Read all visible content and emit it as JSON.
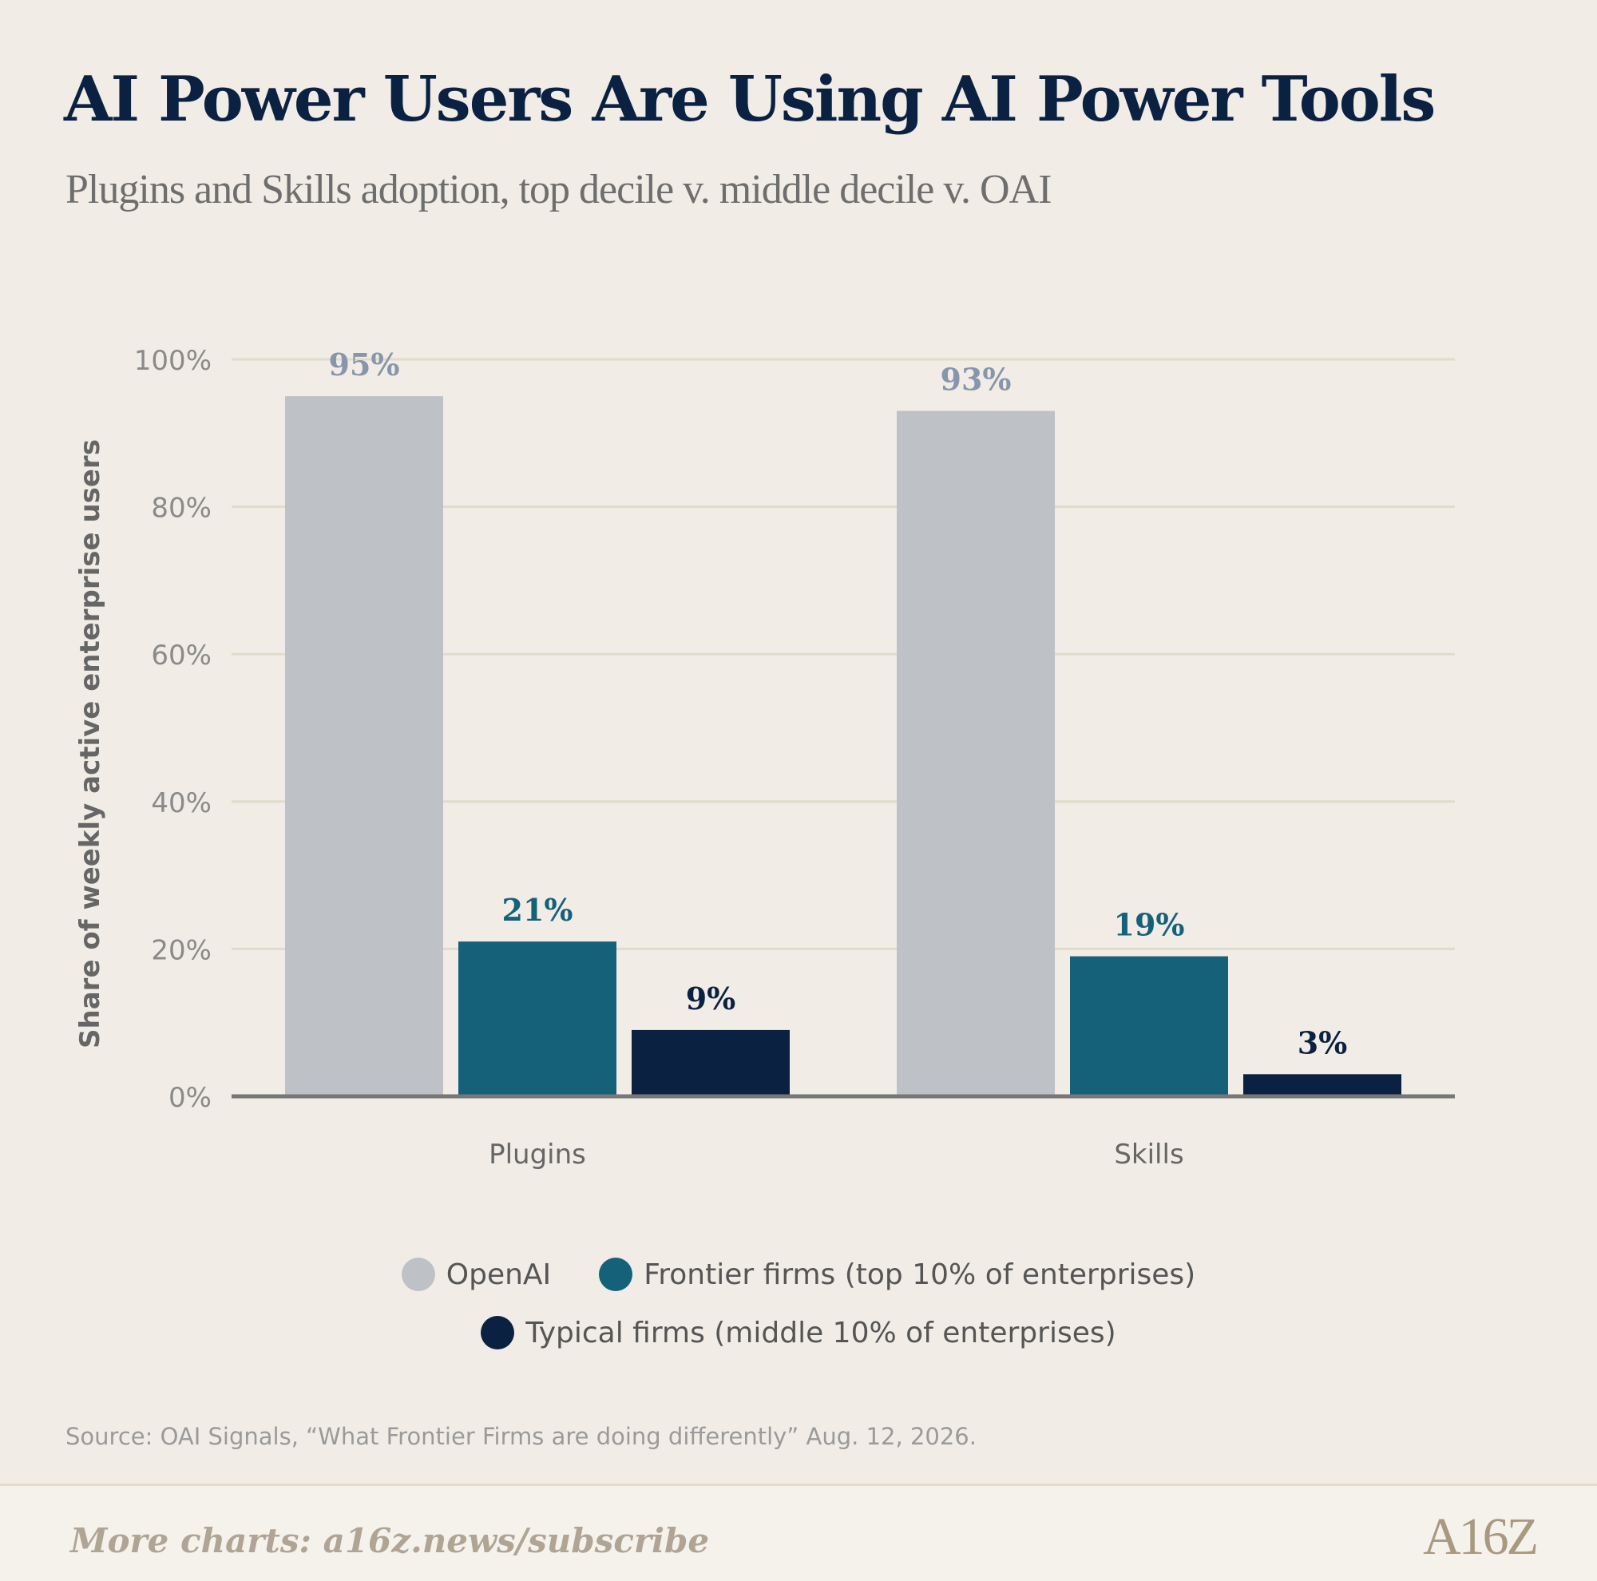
{
  "title": "AI Power Users Are Using AI Power Tools",
  "subtitle": "Plugins and Skills adoption, top decile v. middle decile v. OAI",
  "chart_data": {
    "type": "bar",
    "categories": [
      "Plugins",
      "Skills"
    ],
    "series": [
      {
        "name": "OpenAI",
        "values": [
          95,
          93
        ],
        "color": "#bec2c6",
        "label_color": "#8896ab"
      },
      {
        "name": "Frontier firms (top 10% of enterprises)",
        "values": [
          21,
          19
        ],
        "color": "#16617a",
        "label_color": "#16617a"
      },
      {
        "name": "Typical firms (middle 10% of enterprises)",
        "values": [
          9,
          3
        ],
        "color": "#0b2142",
        "label_color": "#0b2142"
      }
    ],
    "ylabel": "Share of weekly active enterprise users",
    "ylim": [
      0,
      100
    ],
    "yticks": [
      "0%",
      "20%",
      "40%",
      "60%",
      "80%",
      "100%"
    ],
    "ytick_values": [
      0,
      20,
      40,
      60,
      80,
      100
    ],
    "value_suffix": "%",
    "grid": true,
    "legend_position": "bottom"
  },
  "legend": {
    "openai": "OpenAI",
    "frontier": "Frontier firms (top 10% of enterprises)",
    "typical": "Typical firms (middle 10% of enterprises)"
  },
  "colors": {
    "background": "#f1ede6",
    "gridline": "#e0dccb",
    "axis": "#777777",
    "title": "#0b2142"
  },
  "source": "Source: OAI Signals, “What Frontier Firms are doing differently” Aug. 12, 2026.",
  "footer": {
    "link_text": "More charts: a16z.news/subscribe",
    "logo_text": "A16Z"
  }
}
